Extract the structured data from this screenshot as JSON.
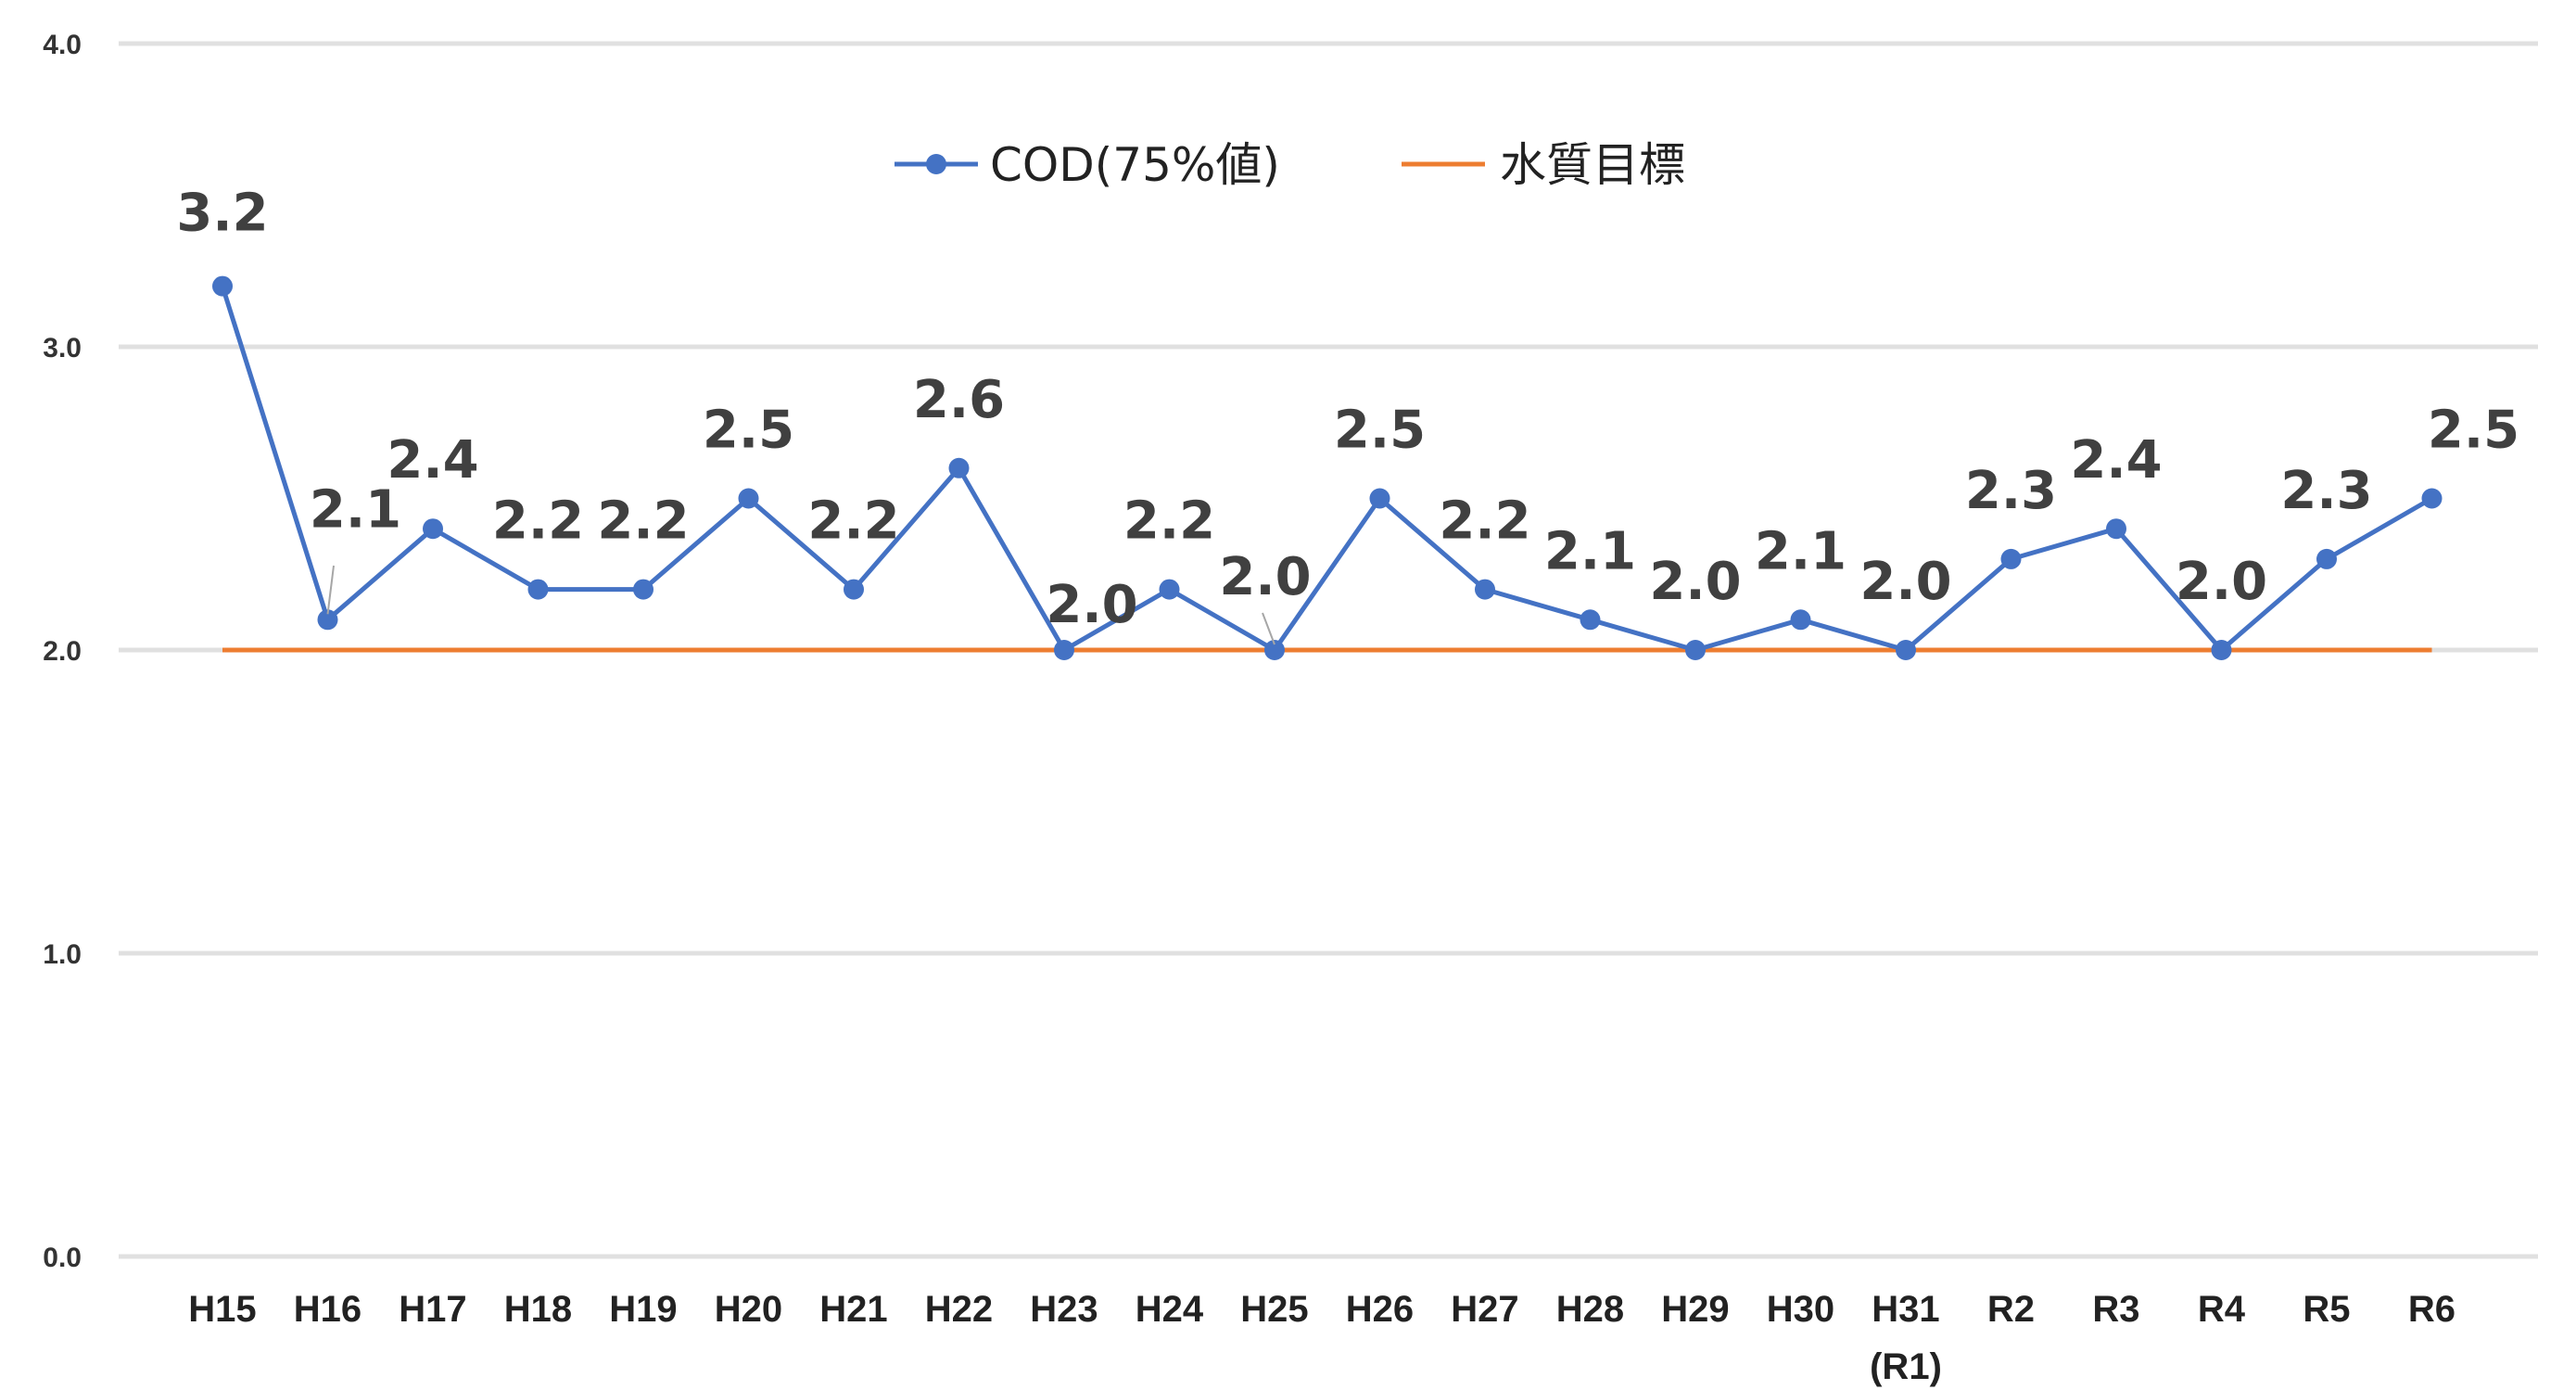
{
  "chart_data": {
    "type": "line",
    "categories": [
      "H15",
      "H16",
      "H17",
      "H18",
      "H19",
      "H20",
      "H21",
      "H22",
      "H23",
      "H24",
      "H25",
      "H26",
      "H27",
      "H28",
      "H29",
      "H30",
      "H31\n(R1)",
      "R2",
      "R3",
      "R4",
      "R5",
      "R6"
    ],
    "series": [
      {
        "name": "COD(75%値)",
        "color": "#4472c4",
        "values": [
          3.2,
          2.1,
          2.4,
          2.2,
          2.2,
          2.5,
          2.2,
          2.6,
          2.0,
          2.2,
          2.0,
          2.5,
          2.2,
          2.1,
          2.0,
          2.1,
          2.0,
          2.3,
          2.4,
          2.0,
          2.3,
          2.5
        ],
        "labels": [
          "3.2",
          "2.1",
          "2.4",
          "2.2",
          "2.2",
          "2.5",
          "2.2",
          "2.6",
          "2.0",
          "2.2",
          "2.0",
          "2.5",
          "2.2",
          "2.1",
          "2.0",
          "2.1",
          "2.0",
          "2.3",
          "2.4",
          "2.0",
          "2.3",
          "2.5"
        ]
      },
      {
        "name": "水質目標",
        "color": "#ed7d31",
        "values": [
          2.0,
          2.0,
          2.0,
          2.0,
          2.0,
          2.0,
          2.0,
          2.0,
          2.0,
          2.0,
          2.0,
          2.0,
          2.0,
          2.0,
          2.0,
          2.0,
          2.0,
          2.0,
          2.0,
          2.0,
          2.0,
          2.0
        ]
      }
    ],
    "y_ticks": [
      "0.0",
      "1.0",
      "2.0",
      "3.0",
      "4.0"
    ],
    "ylim": [
      0,
      4
    ],
    "grid": true,
    "legend_position": "top-center"
  }
}
